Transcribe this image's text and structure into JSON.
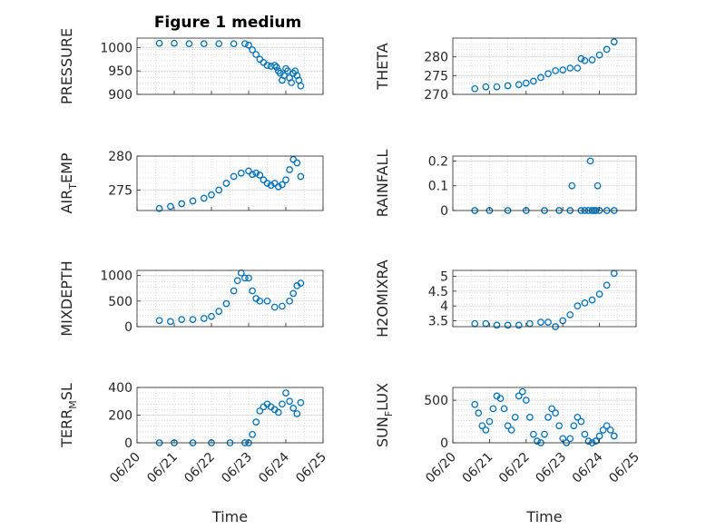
{
  "figure": {
    "title": "Figure 1 medium"
  },
  "chart_data": [
    {
      "type": "scatter",
      "id": "pressure",
      "ylabel": "PRESSURE",
      "xlabel": "",
      "xlim": [
        0,
        5
      ],
      "ylim": [
        900,
        1020
      ],
      "yticks": [
        900,
        950,
        1000
      ],
      "xticks": [],
      "x": [
        0.6,
        1.0,
        1.4,
        1.8,
        2.2,
        2.6,
        2.9,
        3.0,
        3.1,
        3.2,
        3.3,
        3.4,
        3.5,
        3.6,
        3.7,
        3.75,
        3.8,
        3.85,
        3.9,
        3.95,
        4.0,
        4.05,
        4.1,
        4.15,
        4.2,
        4.25,
        4.3,
        4.35,
        4.4
      ],
      "values": [
        1009,
        1009,
        1008,
        1008,
        1008,
        1008,
        1008,
        1005,
        995,
        985,
        975,
        968,
        962,
        960,
        962,
        958,
        950,
        945,
        930,
        940,
        955,
        950,
        935,
        925,
        945,
        950,
        940,
        930,
        918
      ]
    },
    {
      "type": "scatter",
      "id": "theta",
      "ylabel": "THETA",
      "xlabel": "",
      "xlim": [
        0,
        5
      ],
      "ylim": [
        270,
        285
      ],
      "yticks": [
        270,
        275,
        280
      ],
      "xticks": [],
      "x": [
        0.6,
        0.9,
        1.2,
        1.5,
        1.8,
        2.0,
        2.2,
        2.4,
        2.6,
        2.8,
        3.0,
        3.2,
        3.4,
        3.5,
        3.6,
        3.8,
        4.0,
        4.2,
        4.4
      ],
      "values": [
        271.5,
        272,
        272,
        272.3,
        272.6,
        273,
        273.5,
        274.5,
        275.5,
        276.3,
        276.5,
        277,
        277,
        279.5,
        279,
        279.2,
        280.5,
        282,
        284
      ]
    },
    {
      "type": "scatter",
      "id": "airtemp",
      "ylabel": "AIR_TEMP",
      "xlabel": "",
      "xlim": [
        0,
        5
      ],
      "ylim": [
        272,
        280
      ],
      "yticks": [
        275,
        280
      ],
      "xticks": [],
      "x": [
        0.6,
        0.9,
        1.2,
        1.5,
        1.8,
        2.0,
        2.2,
        2.4,
        2.6,
        2.8,
        3.0,
        3.1,
        3.2,
        3.3,
        3.4,
        3.5,
        3.6,
        3.7,
        3.8,
        3.9,
        4.0,
        4.1,
        4.2,
        4.3,
        4.4
      ],
      "values": [
        272.3,
        272.6,
        273,
        273.4,
        273.8,
        274.3,
        275,
        276,
        277,
        277.5,
        277.8,
        277.3,
        277.5,
        277.2,
        276.5,
        276,
        275.7,
        276,
        275.5,
        275.8,
        276.5,
        278,
        279.5,
        279,
        277
      ]
    },
    {
      "type": "scatter",
      "id": "rainfall",
      "ylabel": "RAINFALL",
      "xlabel": "",
      "xlim": [
        0,
        5
      ],
      "ylim": [
        0,
        0.22
      ],
      "yticks": [
        0,
        0.1,
        0.2
      ],
      "xticks": [],
      "x": [
        0.6,
        1.0,
        1.5,
        2.0,
        2.5,
        2.9,
        3.2,
        3.5,
        3.6,
        3.7,
        3.8,
        3.85,
        3.9,
        4.0,
        4.2,
        4.4,
        3.25,
        3.75,
        3.95
      ],
      "values": [
        0,
        0,
        0,
        0,
        0,
        0,
        0,
        0,
        0,
        0,
        0,
        0,
        0,
        0,
        0,
        0,
        0.1,
        0.2,
        0.1
      ]
    },
    {
      "type": "scatter",
      "id": "mixdepth",
      "ylabel": "MIXDEPTH",
      "xlabel": "",
      "xlim": [
        0,
        5
      ],
      "ylim": [
        0,
        1100
      ],
      "yticks": [
        0,
        500,
        1000
      ],
      "xticks": [],
      "x": [
        0.6,
        0.9,
        1.2,
        1.5,
        1.8,
        2.0,
        2.2,
        2.4,
        2.6,
        2.7,
        2.8,
        2.9,
        3.0,
        3.1,
        3.2,
        3.3,
        3.5,
        3.7,
        3.9,
        4.1,
        4.2,
        4.3,
        4.4
      ],
      "values": [
        120,
        100,
        140,
        140,
        160,
        200,
        300,
        450,
        700,
        900,
        1050,
        950,
        950,
        700,
        550,
        500,
        500,
        380,
        400,
        500,
        650,
        800,
        850
      ]
    },
    {
      "type": "scatter",
      "id": "h2omixra",
      "ylabel": "H2OMIXRA",
      "xlabel": "",
      "xlim": [
        0,
        5
      ],
      "ylim": [
        3.3,
        5.2
      ],
      "yticks": [
        3.5,
        4,
        4.5,
        5
      ],
      "xticks": [],
      "x": [
        0.6,
        0.9,
        1.2,
        1.5,
        1.8,
        2.1,
        2.4,
        2.6,
        2.8,
        3.0,
        3.2,
        3.4,
        3.6,
        3.8,
        4.0,
        4.2,
        4.4
      ],
      "values": [
        3.4,
        3.4,
        3.35,
        3.35,
        3.35,
        3.4,
        3.45,
        3.45,
        3.3,
        3.5,
        3.7,
        4.0,
        4.1,
        4.2,
        4.4,
        4.7,
        5.1
      ]
    },
    {
      "type": "scatter",
      "id": "terrmsl",
      "ylabel": "TERR_MSL",
      "xlabel": "Time",
      "xlim": [
        0,
        5
      ],
      "ylim": [
        0,
        400
      ],
      "yticks": [
        0,
        200,
        400
      ],
      "xticks": [
        "06/20",
        "06/21",
        "06/22",
        "06/23",
        "06/24",
        "06/25"
      ],
      "x": [
        0.6,
        1.0,
        1.5,
        2.0,
        2.5,
        2.9,
        3.0,
        3.1,
        3.2,
        3.3,
        3.4,
        3.5,
        3.6,
        3.7,
        3.8,
        3.9,
        4.0,
        4.1,
        4.2,
        4.3,
        4.4
      ],
      "values": [
        0,
        0,
        0,
        0,
        0,
        0,
        0,
        60,
        150,
        230,
        260,
        280,
        260,
        240,
        220,
        280,
        360,
        300,
        250,
        210,
        290
      ]
    },
    {
      "type": "scatter",
      "id": "sunflux",
      "ylabel": "SUN_FLUX",
      "xlabel": "Time",
      "xlim": [
        0,
        5
      ],
      "ylim": [
        0,
        650
      ],
      "yticks": [
        0,
        500
      ],
      "xticks": [
        "06/20",
        "06/21",
        "06/22",
        "06/23",
        "06/24",
        "06/25"
      ],
      "x": [
        0.6,
        0.7,
        0.8,
        0.9,
        1.0,
        1.1,
        1.2,
        1.3,
        1.4,
        1.5,
        1.6,
        1.7,
        1.8,
        1.9,
        2.0,
        2.1,
        2.2,
        2.3,
        2.4,
        2.5,
        2.6,
        2.7,
        2.8,
        2.9,
        3.0,
        3.1,
        3.2,
        3.3,
        3.4,
        3.5,
        3.6,
        3.7,
        3.8,
        3.9,
        4.0,
        4.1,
        4.2,
        4.3,
        4.4
      ],
      "values": [
        450,
        350,
        200,
        150,
        250,
        400,
        550,
        520,
        400,
        200,
        150,
        300,
        550,
        600,
        500,
        300,
        100,
        20,
        0,
        100,
        300,
        400,
        350,
        200,
        50,
        0,
        50,
        200,
        300,
        250,
        100,
        20,
        0,
        20,
        80,
        150,
        200,
        150,
        80
      ]
    }
  ]
}
